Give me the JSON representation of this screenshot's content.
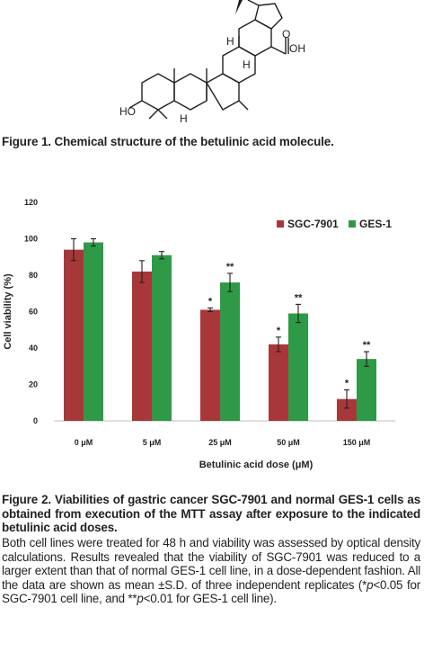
{
  "figure1": {
    "atom_labels": {
      "acid": "OH",
      "acid_o": "O",
      "hydroxyl": "HO",
      "h_top": "H",
      "h_mid": "H",
      "h_bottom": "H"
    },
    "caption": "Figure 1. Chemical structure of the betulinic acid molecule."
  },
  "figure2": {
    "caption": "Figure 2. Viabilities of gastric cancer SGC-7901 and normal GES-1 cells as obtained from execution of the MTT assay after exposure to the indicated betulinic acid doses.",
    "body": {
      "p1": "Both cell lines were treated for 48 h and viability was assessed by optical density calculations. Results revealed that the viability of SGC-7901 was reduced to a larger extent than that of normal GES-1 cell line, in a dose-dependent fashion. All the data are shown as mean ±S.D. of three independent replicates (*",
      "p_italic1": "p",
      "p2": "<0.05 for SGC-7901 cell line, and **",
      "p_italic2": "p",
      "p3": "<0.01 for GES-1 cell line)."
    }
  },
  "chart_data": {
    "type": "bar",
    "categories": [
      "0 μM",
      "5 μM",
      "25 μM",
      "50 μM",
      "150 μM"
    ],
    "series": [
      {
        "name": "SGC-7901",
        "color": "#a8373a",
        "values": [
          94,
          82,
          61,
          42,
          12
        ],
        "errors": [
          6,
          6,
          1,
          4,
          5
        ],
        "marks": [
          "",
          "",
          "*",
          "*",
          "*"
        ]
      },
      {
        "name": "GES-1",
        "color": "#2e9a48",
        "values": [
          98,
          91,
          76,
          59,
          34
        ],
        "errors": [
          2,
          2,
          5,
          5,
          4
        ],
        "marks": [
          "",
          "",
          "**",
          "**",
          "**"
        ]
      }
    ],
    "xlabel": "Betulinic acid dose (μM)",
    "ylabel": "Cell viability (%)",
    "ylim": [
      0,
      120
    ],
    "yticks": [
      "0",
      "20",
      "40",
      "60",
      "80",
      "100",
      "120"
    ],
    "grid": false,
    "legend": "top-right"
  }
}
